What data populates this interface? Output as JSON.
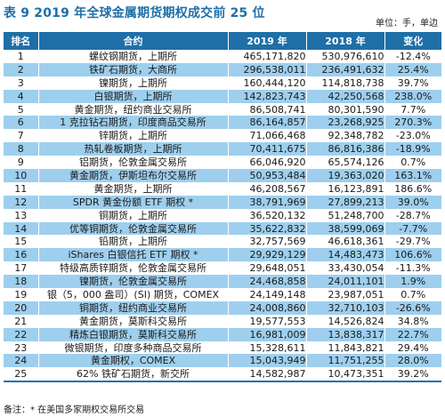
{
  "title": "表 9  2019 年全球金属期货期权成交前 25 位",
  "unit": "单位：手，单边",
  "headers": [
    "排名",
    "合约",
    "2019 年",
    "2018 年",
    "变化"
  ],
  "rows": [
    {
      "rank": "1",
      "contract": "螺纹钢期货，上期所",
      "y2019": "465,171,820",
      "y2018": "530,976,610",
      "change": "-12.4%"
    },
    {
      "rank": "2",
      "contract": "铁矿石期货，大商所",
      "y2019": "296,538,011",
      "y2018": "236,491,632",
      "change": "25.4%"
    },
    {
      "rank": "3",
      "contract": "镍期货，上期所",
      "y2019": "160,444,120",
      "y2018": "114,818,738",
      "change": "39.7%"
    },
    {
      "rank": "4",
      "contract": "白银期货，上期所",
      "y2019": "142,823,743",
      "y2018": "42,250,568",
      "change": "238.0%"
    },
    {
      "rank": "5",
      "contract": "黄金期货，纽约商业交易所",
      "y2019": "86,508,741",
      "y2018": "80,301,590",
      "change": "7.7%"
    },
    {
      "rank": "6",
      "contract": "1 克拉钻石期货，印度商品交易所",
      "y2019": "86,164,857",
      "y2018": "23,268,925",
      "change": "270.3%"
    },
    {
      "rank": "7",
      "contract": "锌期货，上期所",
      "y2019": "71,066,468",
      "y2018": "92,348,782",
      "change": "-23.0%"
    },
    {
      "rank": "8",
      "contract": "热轧卷板期货，上期所",
      "y2019": "70,411,675",
      "y2018": "86,816,386",
      "change": "-18.9%"
    },
    {
      "rank": "9",
      "contract": "铝期货，伦敦金属交易所",
      "y2019": "66,046,920",
      "y2018": "65,574,126",
      "change": "0.7%"
    },
    {
      "rank": "10",
      "contract": "黄金期货，伊斯坦布尔交易所",
      "y2019": "50,953,484",
      "y2018": "19,363,020",
      "change": "163.1%"
    },
    {
      "rank": "11",
      "contract": "黄金期货，上期所",
      "y2019": "46,208,567",
      "y2018": "16,123,891",
      "change": "186.6%"
    },
    {
      "rank": "12",
      "contract": "SPDR 黄金份额 ETF 期权 *",
      "y2019": "38,791,969",
      "y2018": "27,899,213",
      "change": "39.0%"
    },
    {
      "rank": "13",
      "contract": "铜期货，上期所",
      "y2019": "36,520,132",
      "y2018": "51,248,700",
      "change": "-28.7%"
    },
    {
      "rank": "14",
      "contract": "优等铜期货，伦敦金属交易所",
      "y2019": "35,622,832",
      "y2018": "38,599,069",
      "change": "-7.7%"
    },
    {
      "rank": "15",
      "contract": "铅期货，上期所",
      "y2019": "32,757,569",
      "y2018": "46,618,361",
      "change": "-29.7%"
    },
    {
      "rank": "16",
      "contract": "iShares 白银信托 ETF 期权 *",
      "y2019": "29,929,129",
      "y2018": "14,483,473",
      "change": "106.6%"
    },
    {
      "rank": "17",
      "contract": "特级高质锌期货，伦敦金属交易所",
      "y2019": "29,648,051",
      "y2018": "33,430,054",
      "change": "-11.3%"
    },
    {
      "rank": "18",
      "contract": "镍期货，伦敦金属交易所",
      "y2019": "24,468,858",
      "y2018": "24,011,101",
      "change": "1.9%"
    },
    {
      "rank": "19",
      "contract": "银（5，000 盎司）(SI) 期货，COMEX",
      "y2019": "24,149,148",
      "y2018": "23,987,051",
      "change": "0.7%"
    },
    {
      "rank": "20",
      "contract": "铜期货，纽约商业交易所",
      "y2019": "24,008,860",
      "y2018": "32,710,103",
      "change": "-26.6%"
    },
    {
      "rank": "21",
      "contract": "黄金期货，莫斯科交易所",
      "y2019": "19,577,553",
      "y2018": "14,526,824",
      "change": "34.8%"
    },
    {
      "rank": "22",
      "contract": "精炼白银期货，莫斯科交易所",
      "y2019": "16,981,009",
      "y2018": "13,838,317",
      "change": "22.7%"
    },
    {
      "rank": "23",
      "contract": "微银期货，印度多种商品交易所",
      "y2019": "15,328,611",
      "y2018": "11,843,821",
      "change": "29.4%"
    },
    {
      "rank": "24",
      "contract": "黄金期权，COMEX",
      "y2019": "15,043,949",
      "y2018": "11,751,255",
      "change": "28.0%"
    },
    {
      "rank": "25",
      "contract": "62% 铁矿石期货，新交所",
      "y2019": "14,582,987",
      "y2018": "10,473,351",
      "change": "39.2%"
    }
  ],
  "note": "备注：* 在美国多家期权交易所交易",
  "colors": {
    "header_bg": "#1e6fa8",
    "stripe": "#9ecfee",
    "title": "#1e6fa8"
  }
}
